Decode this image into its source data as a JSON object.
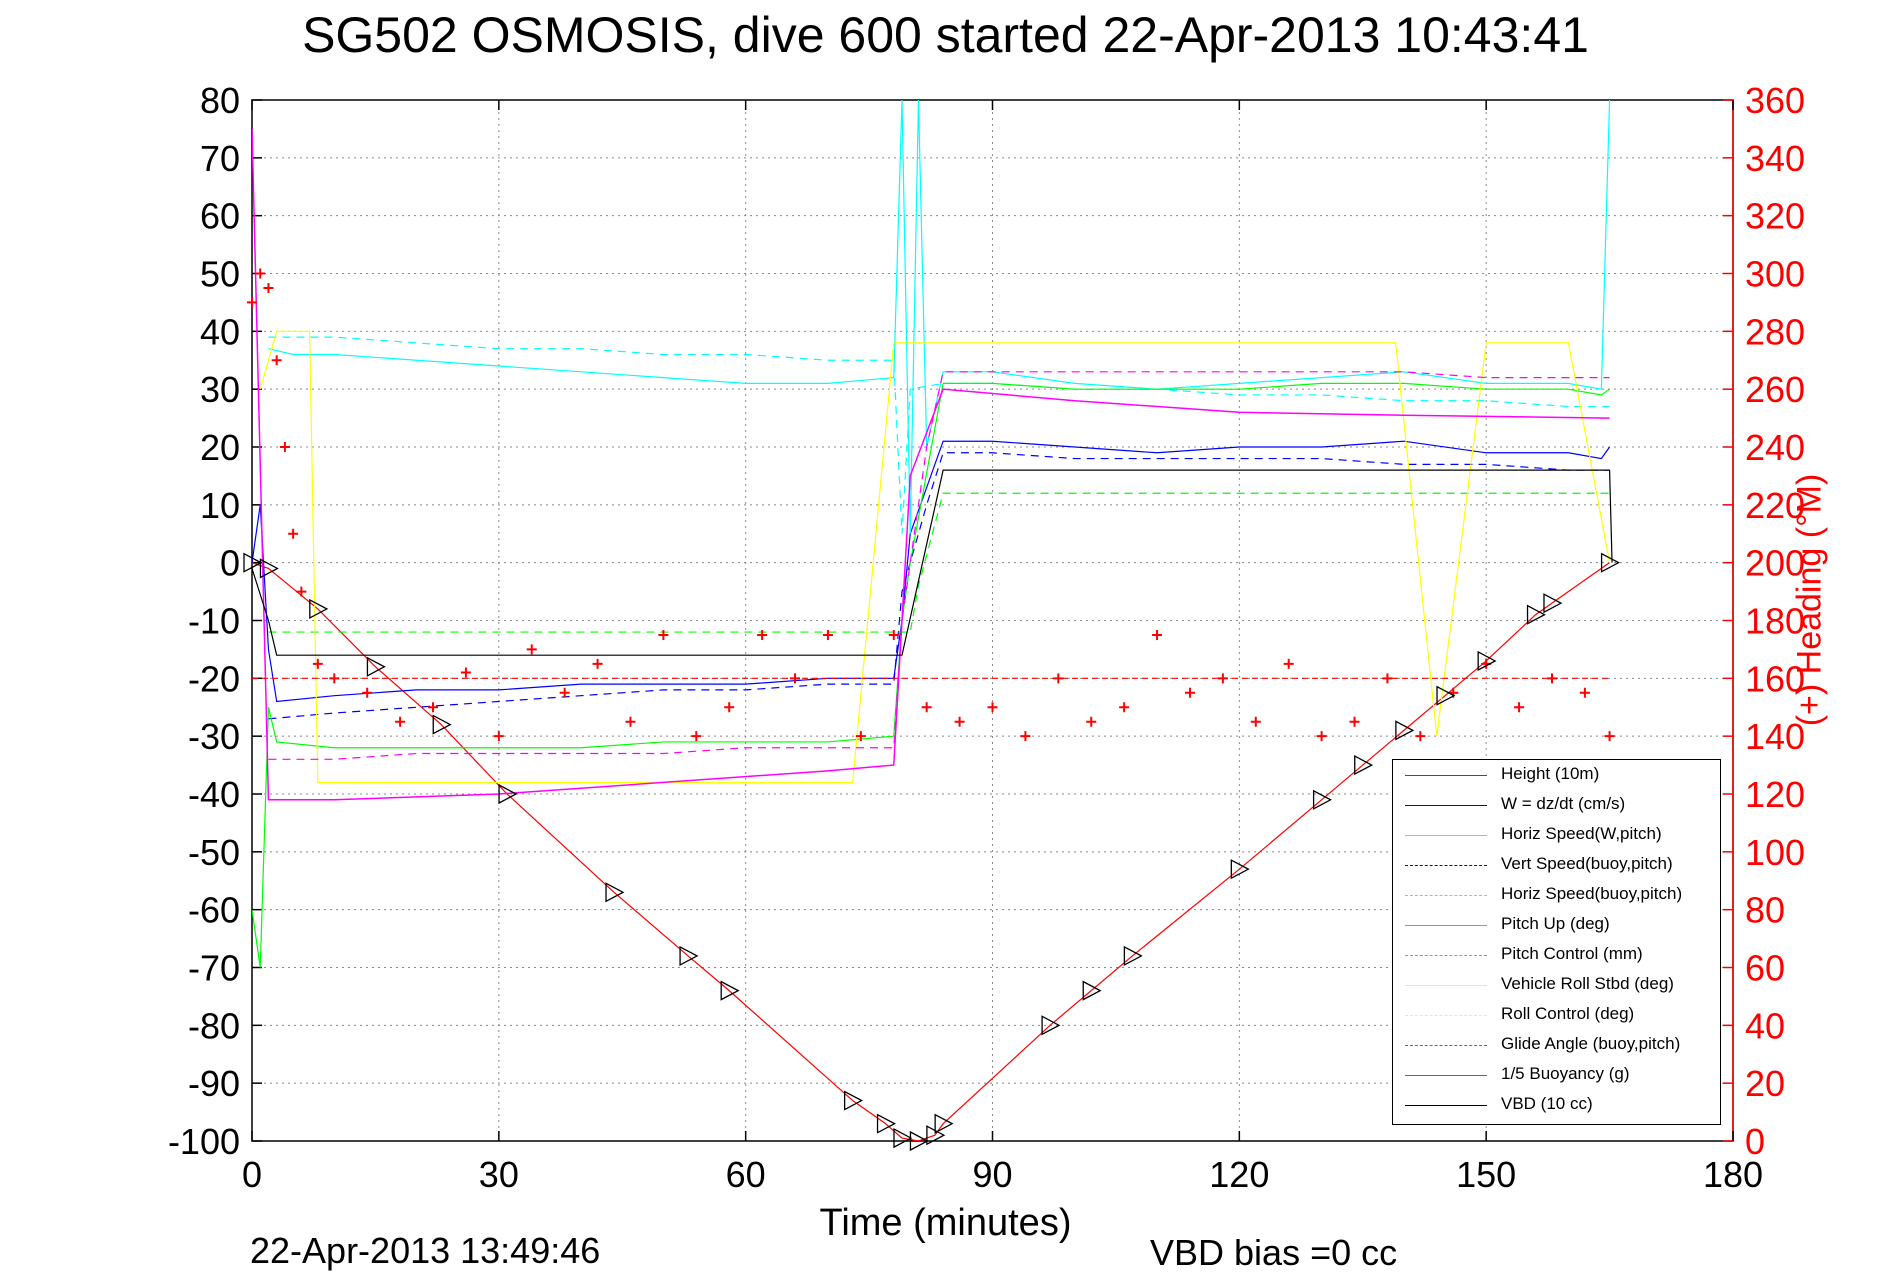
{
  "title": "SG502 OSMOSIS, dive 600 started 22-Apr-2013 10:43:41",
  "xlabel": "Time (minutes)",
  "ylabel_right": "(+) Heading (°M)",
  "footer_timestamp": "22-Apr-2013 13:49:46",
  "footer_vbd_bias": "VBD bias =0 cc",
  "colors": {
    "height": "#ff0000",
    "w": "#0000ff",
    "horiz_speed": "#00ffff",
    "pitch": "#00ff00",
    "roll": "#ffff00",
    "glide": "#ff00ff",
    "buoyancy": "#ff00ff",
    "vbd": "#000000",
    "heading_axis": "#ff0000"
  },
  "legend": [
    {
      "label": "Height (10m)",
      "color": "#ff0000",
      "dash": "solid"
    },
    {
      "label": "W = dz/dt (cm/s)",
      "color": "#0000ff",
      "dash": "solid"
    },
    {
      "label": "Horiz Speed(W,pitch)",
      "color": "#00ffff",
      "dash": "solid"
    },
    {
      "label": "Vert Speed(buoy,pitch)",
      "color": "#0000ff",
      "dash": "dashed"
    },
    {
      "label": "Horiz Speed(buoy,pitch)",
      "color": "#00ffff",
      "dash": "dashed"
    },
    {
      "label": "Pitch Up (deg)",
      "color": "#00ff00",
      "dash": "solid"
    },
    {
      "label": "Pitch Control (mm)",
      "color": "#00ff00",
      "dash": "dashed"
    },
    {
      "label": "Vehicle Roll Stbd (deg)",
      "color": "#ffff00",
      "dash": "solid"
    },
    {
      "label": "Roll Control (deg)",
      "color": "#ffff00",
      "dash": "dashed"
    },
    {
      "label": "Glide Angle (buoy,pitch)",
      "color": "#ff00ff",
      "dash": "dashed"
    },
    {
      "label": "1/5 Buoyancy (g)",
      "color": "#ff00ff",
      "dash": "solid"
    },
    {
      "label": "VBD (10 cc)",
      "color": "#000000",
      "dash": "solid"
    }
  ],
  "chart_data": {
    "type": "line",
    "xlim": [
      0,
      180
    ],
    "ylim": [
      -100,
      80
    ],
    "y2lim": [
      0,
      360
    ],
    "xticks": [
      0,
      30,
      60,
      90,
      120,
      150,
      180
    ],
    "yticks": [
      80,
      70,
      60,
      50,
      40,
      30,
      20,
      10,
      0,
      -10,
      -20,
      -30,
      -40,
      -50,
      -60,
      -70,
      -80,
      -90,
      -100
    ],
    "y2ticks": [
      360,
      340,
      320,
      300,
      280,
      260,
      240,
      220,
      200,
      180,
      160,
      140,
      120,
      100,
      80,
      60,
      40,
      20,
      0
    ],
    "grid": true,
    "legend_position": "bottom-right",
    "series": [
      {
        "key": "height",
        "x": [
          0,
          2,
          8,
          15,
          23,
          31,
          44,
          53,
          58,
          73,
          77,
          79,
          81,
          83,
          84,
          97,
          102,
          107,
          120,
          130,
          135,
          140,
          145,
          150,
          156,
          158,
          165
        ],
        "y": [
          0,
          -1,
          -8,
          -18,
          -28,
          -40,
          -57,
          -68,
          -74,
          -93,
          -97,
          -99.5,
          -100,
          -99,
          -97,
          -80,
          -74,
          -68,
          -53,
          -41,
          -35,
          -29,
          -23,
          -17,
          -9,
          -7,
          0
        ]
      },
      {
        "key": "w",
        "x": [
          0,
          1,
          2,
          3,
          10,
          20,
          30,
          40,
          50,
          60,
          70,
          78,
          79,
          80,
          84,
          90,
          100,
          110,
          120,
          130,
          140,
          150,
          160,
          164,
          165
        ],
        "y": [
          0,
          10,
          -15,
          -24,
          -23,
          -22,
          -22,
          -21,
          -21,
          -21,
          -20,
          -20,
          -10,
          5,
          21,
          21,
          20,
          19,
          20,
          20,
          21,
          19,
          19,
          18,
          20
        ]
      },
      {
        "key": "vert_speed_buoy",
        "x": [
          2,
          10,
          20,
          30,
          40,
          50,
          60,
          70,
          78,
          79,
          82,
          84,
          90,
          100,
          110,
          120,
          130,
          140,
          150,
          160,
          165
        ],
        "y": [
          -27,
          -26,
          -25,
          -24,
          -23,
          -22,
          -22,
          -21,
          -21,
          -5,
          10,
          19,
          19,
          18,
          18,
          18,
          18,
          17,
          17,
          16,
          16
        ]
      },
      {
        "key": "horiz_speed_w",
        "x": [
          2,
          5,
          10,
          20,
          30,
          40,
          50,
          60,
          70,
          78,
          79,
          80,
          81,
          82,
          84,
          90,
          100,
          110,
          120,
          130,
          140,
          150,
          160,
          164,
          165
        ],
        "y": [
          37,
          36,
          36,
          35,
          34,
          33,
          32,
          31,
          31,
          32,
          80,
          5,
          80,
          20,
          33,
          33,
          31,
          30,
          31,
          32,
          33,
          31,
          31,
          30,
          80
        ]
      },
      {
        "key": "horiz_speed_buoy",
        "x": [
          2,
          10,
          20,
          30,
          40,
          50,
          60,
          70,
          78,
          79,
          80,
          84,
          90,
          100,
          110,
          120,
          130,
          140,
          150,
          160,
          165
        ],
        "y": [
          39,
          39,
          38,
          37,
          37,
          36,
          36,
          35,
          35,
          5,
          30,
          31,
          31,
          30,
          30,
          29,
          29,
          28,
          28,
          27,
          27
        ]
      },
      {
        "key": "pitch",
        "x": [
          0,
          1,
          2,
          3,
          10,
          20,
          30,
          40,
          50,
          60,
          70,
          78,
          79,
          80,
          84,
          90,
          100,
          110,
          120,
          130,
          140,
          150,
          160,
          164,
          165
        ],
        "y": [
          -60,
          -70,
          -25,
          -31,
          -32,
          -32,
          -32,
          -32,
          -31,
          -31,
          -31,
          -30,
          -10,
          0,
          31,
          31,
          30,
          30,
          30,
          31,
          31,
          30,
          30,
          29,
          30
        ]
      },
      {
        "key": "pitch_control",
        "x": [
          2,
          80,
          81,
          84,
          165
        ],
        "y": [
          -12,
          -12,
          -4,
          12,
          12
        ]
      },
      {
        "key": "roll_spikes",
        "x": [
          1,
          3,
          7,
          8,
          15,
          22,
          29,
          43,
          53,
          58,
          73,
          78,
          83,
          86,
          97,
          102,
          107,
          120,
          127,
          134,
          139,
          144,
          150,
          156,
          160,
          165
        ],
        "y": [
          30,
          40,
          40,
          -38,
          -38,
          -38,
          -38,
          -38,
          -38,
          -38,
          -38,
          38,
          38,
          38,
          38,
          38,
          38,
          38,
          38,
          38,
          38,
          -30,
          38,
          38,
          38,
          0
        ]
      },
      {
        "key": "glide",
        "x": [
          2,
          10,
          20,
          30,
          40,
          50,
          60,
          70,
          78,
          79,
          82,
          84,
          90,
          100,
          110,
          120,
          130,
          140,
          150,
          160,
          165
        ],
        "y": [
          -34,
          -34,
          -33,
          -33,
          -33,
          -33,
          -32,
          -32,
          -32,
          -10,
          20,
          33,
          33,
          33,
          33,
          33,
          33,
          33,
          32,
          32,
          32
        ]
      },
      {
        "key": "buoyancy",
        "x": [
          0,
          2,
          10,
          30,
          50,
          70,
          78,
          80,
          84,
          100,
          120,
          140,
          165
        ],
        "y": [
          75,
          -41,
          -41,
          -40,
          -38,
          -36,
          -35,
          15,
          30,
          28,
          26,
          25.5,
          25
        ]
      },
      {
        "key": "vbd",
        "x": [
          0,
          2,
          3,
          79,
          84,
          165,
          165.3
        ],
        "y": [
          -1,
          -10,
          -16,
          -16,
          16,
          16,
          0
        ]
      }
    ],
    "heading": {
      "x": [
        0,
        1,
        2,
        3,
        4,
        5,
        6,
        8,
        10,
        14,
        18,
        22,
        26,
        30,
        34,
        38,
        42,
        46,
        50,
        54,
        58,
        62,
        66,
        70,
        74,
        78,
        82,
        86,
        90,
        94,
        98,
        102,
        106,
        110,
        114,
        118,
        122,
        126,
        130,
        134,
        138,
        142,
        146,
        150,
        154,
        158,
        162,
        165
      ],
      "y": [
        290,
        300,
        295,
        270,
        240,
        210,
        190,
        165,
        160,
        155,
        145,
        150,
        162,
        140,
        170,
        155,
        165,
        145,
        175,
        140,
        150,
        175,
        160,
        175,
        140,
        175,
        150,
        145,
        150,
        140,
        160,
        145,
        150,
        175,
        155,
        160,
        145,
        165,
        140,
        145,
        160,
        140,
        155,
        165,
        150,
        160,
        155,
        140
      ]
    },
    "heading_reference": 160
  }
}
